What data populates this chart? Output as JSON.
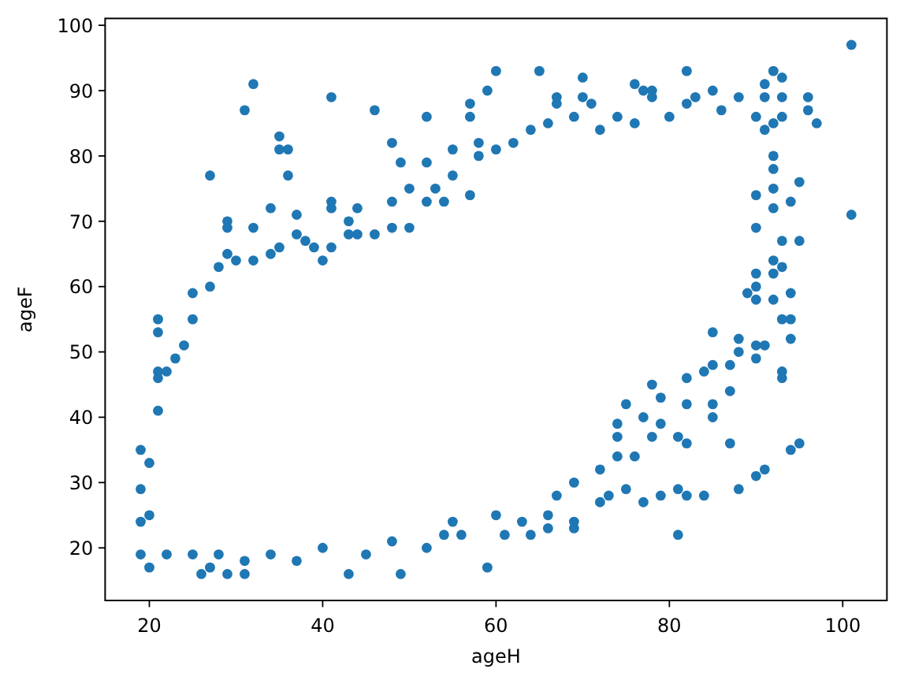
{
  "chart_data": {
    "type": "scatter",
    "xlabel": "ageH",
    "ylabel": "ageF",
    "color": "#1f77b4",
    "marker": "circle",
    "x": [
      32,
      31,
      41,
      46,
      52,
      35,
      35,
      36,
      36,
      27,
      48,
      49,
      52,
      55,
      55,
      50,
      53,
      48,
      41,
      41,
      34,
      29,
      29,
      32,
      37,
      44,
      43,
      19,
      19,
      19,
      19,
      20,
      20,
      21,
      21,
      21,
      21,
      21,
      22,
      23,
      24,
      25,
      25,
      27,
      28,
      29,
      30,
      32,
      34,
      35,
      37,
      38,
      39,
      40,
      41,
      43,
      44,
      46,
      48,
      50,
      52,
      54,
      57,
      58,
      58,
      60,
      62,
      64,
      66,
      69,
      72,
      74,
      76,
      80,
      82,
      86,
      88,
      90,
      91,
      92,
      92,
      92,
      90,
      92,
      90,
      93,
      92,
      93,
      90,
      92,
      90,
      89,
      90,
      101,
      101,
      60,
      65,
      70,
      82,
      92,
      93,
      76,
      77,
      78,
      78,
      57,
      57,
      59,
      67,
      67,
      70,
      71,
      96,
      96,
      97,
      91,
      91,
      93,
      85,
      83,
      92,
      93,
      95,
      94,
      95,
      94,
      92,
      94,
      93,
      94,
      93,
      93,
      90,
      90,
      91,
      88,
      88,
      87,
      87,
      87,
      94,
      95,
      90,
      91,
      88,
      81,
      84,
      82,
      81,
      79,
      77,
      72,
      73,
      75,
      59,
      69,
      69,
      66,
      64,
      61,
      56,
      55,
      66,
      67,
      69,
      72,
      74,
      76,
      74,
      74,
      75,
      77,
      79,
      78,
      81,
      82,
      78,
      79,
      82,
      85,
      85,
      84,
      85,
      82,
      85,
      26,
      27,
      29,
      31,
      31,
      37,
      43,
      49,
      52,
      34,
      40,
      45,
      48,
      54,
      22,
      25,
      28,
      20,
      60,
      63
    ],
    "values": [
      91,
      87,
      89,
      87,
      86,
      83,
      81,
      81,
      77,
      77,
      82,
      79,
      79,
      81,
      77,
      75,
      75,
      73,
      73,
      72,
      72,
      70,
      69,
      69,
      71,
      72,
      70,
      35,
      29,
      24,
      19,
      17,
      33,
      41,
      46,
      47,
      53,
      55,
      47,
      49,
      51,
      55,
      59,
      60,
      63,
      65,
      64,
      64,
      65,
      66,
      68,
      67,
      66,
      64,
      66,
      68,
      68,
      68,
      69,
      69,
      73,
      73,
      74,
      80,
      82,
      81,
      82,
      84,
      85,
      86,
      84,
      86,
      85,
      86,
      88,
      87,
      89,
      86,
      84,
      80,
      78,
      75,
      74,
      72,
      69,
      67,
      64,
      63,
      62,
      62,
      60,
      59,
      58,
      97,
      71,
      93,
      93,
      92,
      93,
      93,
      92,
      91,
      90,
      90,
      89,
      88,
      86,
      90,
      89,
      88,
      89,
      88,
      89,
      87,
      85,
      91,
      89,
      89,
      90,
      89,
      85,
      86,
      76,
      73,
      67,
      59,
      58,
      55,
      55,
      52,
      47,
      46,
      51,
      49,
      51,
      52,
      50,
      48,
      44,
      36,
      35,
      36,
      31,
      32,
      29,
      22,
      28,
      28,
      29,
      28,
      27,
      27,
      28,
      29,
      17,
      24,
      23,
      23,
      22,
      22,
      22,
      24,
      25,
      28,
      30,
      32,
      34,
      34,
      37,
      39,
      42,
      40,
      39,
      37,
      37,
      36,
      45,
      43,
      42,
      42,
      40,
      47,
      48,
      46,
      53,
      16,
      17,
      16,
      18,
      16,
      18,
      16,
      16,
      20,
      19,
      20,
      19,
      21,
      22,
      19,
      19,
      19,
      25,
      25,
      24
    ],
    "xlim": [
      14.9,
      105.1
    ],
    "ylim": [
      11.95,
      101.05
    ],
    "xticks": [
      20,
      40,
      60,
      80,
      100
    ],
    "yticks": [
      20,
      30,
      40,
      50,
      60,
      70,
      80,
      90,
      100
    ]
  }
}
